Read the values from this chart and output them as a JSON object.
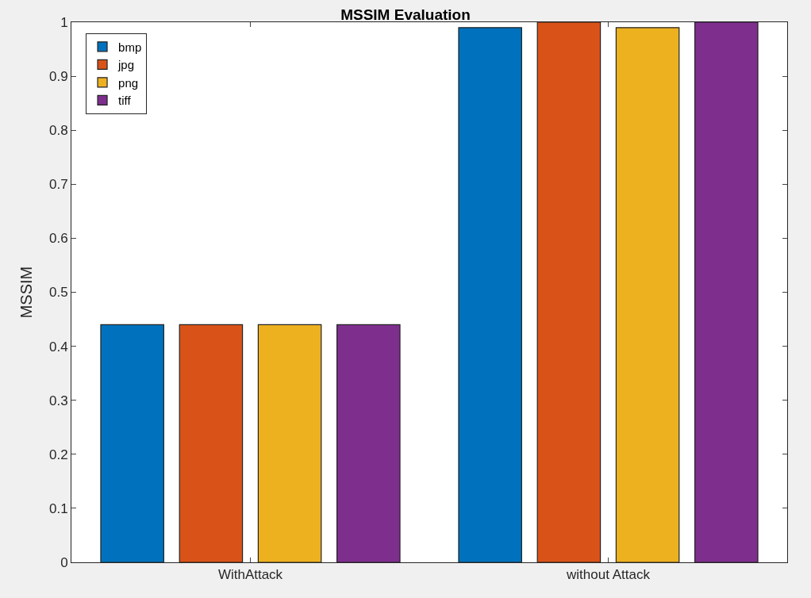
{
  "chart_data": {
    "type": "bar",
    "title": "MSSIM Evaluation",
    "ylabel": "MSSIM",
    "categories": [
      "WithAttack",
      "without Attack"
    ],
    "series": [
      {
        "name": "bmp",
        "color": "#0072bd",
        "values": [
          0.44,
          0.99
        ]
      },
      {
        "name": "jpg",
        "color": "#d95319",
        "values": [
          0.44,
          1.0
        ]
      },
      {
        "name": "png",
        "color": "#edb120",
        "values": [
          0.44,
          0.99
        ]
      },
      {
        "name": "tiff",
        "color": "#7e2f8e",
        "values": [
          0.44,
          1.0
        ]
      }
    ],
    "ylim": [
      0,
      1
    ],
    "yticks": [
      0,
      0.1,
      0.2,
      0.3,
      0.4,
      0.5,
      0.6,
      0.7,
      0.8,
      0.9,
      1
    ],
    "legend": "top left"
  }
}
